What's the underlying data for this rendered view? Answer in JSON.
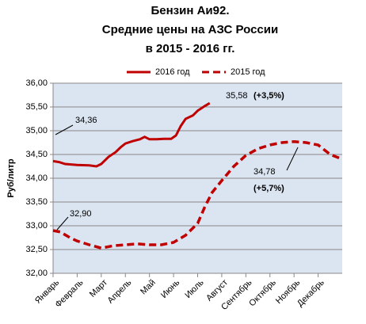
{
  "chart_data": {
    "type": "line",
    "title": [
      "Бензин Аи92.",
      "Средние цены на АЗС России",
      "в 2015 - 2016 гг."
    ],
    "y_label": "Руб/литр",
    "xlim": [
      0,
      12
    ],
    "xticks": [
      {
        "value": 0,
        "label": "Январь"
      },
      {
        "value": 1,
        "label": "Февраль"
      },
      {
        "value": 2,
        "label": "Март"
      },
      {
        "value": 3,
        "label": "Апрель"
      },
      {
        "value": 4,
        "label": "Май"
      },
      {
        "value": 5,
        "label": "Июнь"
      },
      {
        "value": 6,
        "label": "Июль"
      },
      {
        "value": 7,
        "label": "Август"
      },
      {
        "value": 8,
        "label": "Сентябрь"
      },
      {
        "value": 9,
        "label": "Октябрь"
      },
      {
        "value": 10,
        "label": "Ноябрь"
      },
      {
        "value": 11,
        "label": "Декабрь"
      }
    ],
    "ylim": [
      32,
      36
    ],
    "yticks": [
      {
        "value": 32,
        "label": "32,00"
      },
      {
        "value": 32.5,
        "label": "32,50"
      },
      {
        "value": 33,
        "label": "33,00"
      },
      {
        "value": 33.5,
        "label": "33,50"
      },
      {
        "value": 34,
        "label": "34,00"
      },
      {
        "value": 34.5,
        "label": "34,50"
      },
      {
        "value": 35,
        "label": "35,00"
      },
      {
        "value": 35.5,
        "label": "35,50"
      },
      {
        "value": 36,
        "label": "36,00"
      }
    ],
    "grid": true,
    "series": [
      {
        "name": "2016 год",
        "color": "#c00000",
        "dashed": false,
        "x": [
          0,
          0.25,
          0.5,
          1,
          1.5,
          1.8,
          2,
          2.3,
          2.6,
          2.8,
          3,
          3.3,
          3.6,
          3.8,
          4,
          4.3,
          4.6,
          4.9,
          5.1,
          5.3,
          5.5,
          5.8,
          6,
          6.3,
          6.5
        ],
        "values": [
          34.36,
          34.34,
          34.3,
          34.28,
          34.27,
          34.25,
          34.3,
          34.45,
          34.55,
          34.65,
          34.73,
          34.78,
          34.82,
          34.87,
          34.82,
          34.82,
          34.83,
          34.83,
          34.9,
          35.1,
          35.25,
          35.32,
          35.42,
          35.52,
          35.58
        ]
      },
      {
        "name": "2015 год",
        "color": "#c00000",
        "dashed": true,
        "x": [
          0,
          0.3,
          0.7,
          1,
          1.5,
          2,
          2.5,
          3,
          3.5,
          4,
          4.5,
          5,
          5.5,
          6,
          6.3,
          6.6,
          7,
          7.5,
          8,
          8.5,
          9,
          9.5,
          10,
          10.5,
          11,
          11.5,
          12
        ],
        "values": [
          32.9,
          32.87,
          32.75,
          32.68,
          32.6,
          32.53,
          32.58,
          32.6,
          32.62,
          32.6,
          32.6,
          32.65,
          32.8,
          33.05,
          33.4,
          33.7,
          33.95,
          34.25,
          34.48,
          34.62,
          34.7,
          34.75,
          34.77,
          34.75,
          34.7,
          34.5,
          34.4
        ]
      }
    ],
    "annotations": [
      {
        "text": "34,36"
      },
      {
        "text": "32,90"
      },
      {
        "text": "35,58"
      },
      {
        "text": "(+3,5%)"
      },
      {
        "text": "34,78"
      },
      {
        "text": "(+5,7%)"
      }
    ]
  }
}
